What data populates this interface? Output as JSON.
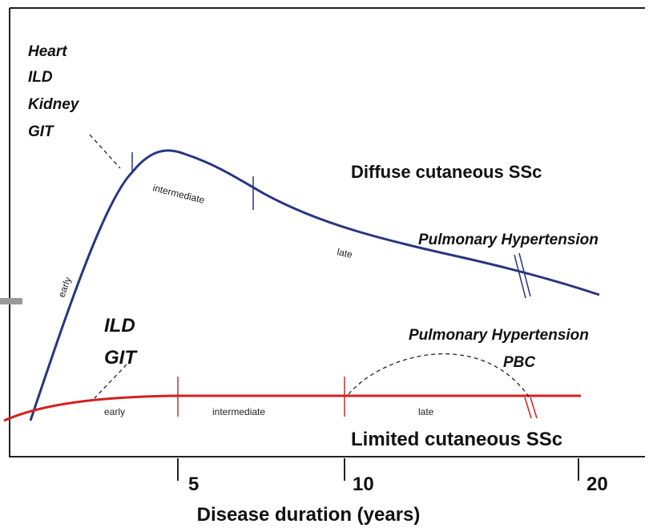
{
  "diffuse": {
    "label": "Diffuse cutaneous SSc",
    "organs": [
      "Heart",
      "ILD",
      "Kidney",
      "GIT"
    ],
    "phases": [
      "early",
      "intermediate",
      "late"
    ],
    "late_complication": "Pulmonary Hypertension"
  },
  "limited": {
    "label": "Limited cutaneous SSc",
    "organs": [
      "ILD",
      "GIT"
    ],
    "phases": [
      "early",
      "intermediate",
      "late"
    ],
    "late_complications": [
      "Pulmonary Hypertension",
      "PBC"
    ]
  },
  "x_axis": {
    "label": "Disease duration (years)",
    "ticks": [
      "5",
      "10",
      "20"
    ]
  }
}
